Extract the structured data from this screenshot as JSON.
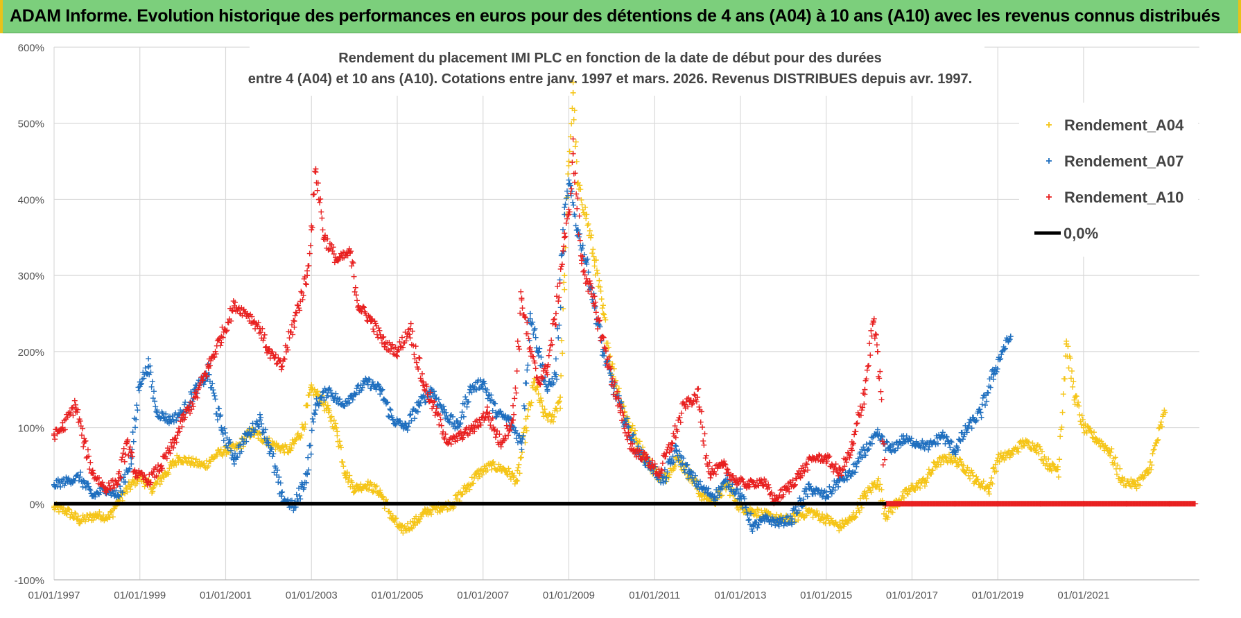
{
  "header": {
    "title": "ADAM Informe. Evolution historique des performances en euros pour des détentions de 4 ans (A04) à 10 ans (A10) avec les revenus connus distribués"
  },
  "chart_data": {
    "type": "scatter",
    "title_line1": "Rendement du placement IMI PLC en fonction de la date de début pour des durées",
    "title_line2": "entre 4 (A04) et 10 ans (A10). Cotations entre janv. 1997 et mars. 2026. Revenus DISTRIBUES depuis avr. 1997.",
    "xlabel": "",
    "ylabel": "",
    "x_range": [
      1997.0,
      2023.7
    ],
    "ylim": [
      -100,
      600
    ],
    "y_ticks": [
      "-100%",
      "0%",
      "100%",
      "200%",
      "300%",
      "400%",
      "500%",
      "600%"
    ],
    "y_tick_values": [
      -100,
      0,
      100,
      200,
      300,
      400,
      500,
      600
    ],
    "x_ticks": [
      "01/01/1997",
      "01/01/1999",
      "01/01/2001",
      "01/01/2003",
      "01/01/2005",
      "01/01/2007",
      "01/01/2009",
      "01/01/2011",
      "01/01/2013",
      "01/01/2015",
      "01/01/2017",
      "01/01/2019",
      "01/01/2021"
    ],
    "x_tick_values": [
      1997,
      1999,
      2001,
      2003,
      2005,
      2007,
      2009,
      2011,
      2013,
      2015,
      2017,
      2019,
      2021
    ],
    "grid": true,
    "legend_position": "top-right",
    "series": [
      {
        "name": "Rendement_A04",
        "color": "#f5c518",
        "points": [
          [
            1997.0,
            -5
          ],
          [
            1997.3,
            -10
          ],
          [
            1997.6,
            -22
          ],
          [
            1998.0,
            -15
          ],
          [
            1998.3,
            -18
          ],
          [
            1998.5,
            5
          ],
          [
            1998.8,
            25
          ],
          [
            1999.0,
            35
          ],
          [
            1999.3,
            20
          ],
          [
            1999.6,
            40
          ],
          [
            1999.9,
            60
          ],
          [
            2000.2,
            55
          ],
          [
            2000.5,
            50
          ],
          [
            2000.8,
            65
          ],
          [
            2001.0,
            70
          ],
          [
            2001.3,
            75
          ],
          [
            2001.6,
            95
          ],
          [
            2001.9,
            85
          ],
          [
            2002.2,
            75
          ],
          [
            2002.5,
            70
          ],
          [
            2002.8,
            100
          ],
          [
            2003.0,
            150
          ],
          [
            2003.2,
            140
          ],
          [
            2003.4,
            120
          ],
          [
            2003.6,
            95
          ],
          [
            2003.8,
            40
          ],
          [
            2004.0,
            20
          ],
          [
            2004.3,
            25
          ],
          [
            2004.6,
            15
          ],
          [
            2004.9,
            -20
          ],
          [
            2005.1,
            -35
          ],
          [
            2005.4,
            -25
          ],
          [
            2005.7,
            -10
          ],
          [
            2006.0,
            -5
          ],
          [
            2006.3,
            0
          ],
          [
            2006.6,
            20
          ],
          [
            2006.9,
            40
          ],
          [
            2007.2,
            50
          ],
          [
            2007.5,
            45
          ],
          [
            2007.8,
            30
          ],
          [
            2008.0,
            100
          ],
          [
            2008.2,
            160
          ],
          [
            2008.4,
            120
          ],
          [
            2008.6,
            110
          ],
          [
            2008.8,
            140
          ],
          [
            2008.9,
            300
          ],
          [
            2009.0,
            450
          ],
          [
            2009.1,
            540
          ],
          [
            2009.2,
            420
          ],
          [
            2009.4,
            380
          ],
          [
            2009.6,
            320
          ],
          [
            2009.8,
            250
          ],
          [
            2010.0,
            180
          ],
          [
            2010.3,
            120
          ],
          [
            2010.6,
            80
          ],
          [
            2010.9,
            50
          ],
          [
            2011.2,
            30
          ],
          [
            2011.5,
            60
          ],
          [
            2011.8,
            40
          ],
          [
            2012.1,
            10
          ],
          [
            2012.4,
            5
          ],
          [
            2012.7,
            25
          ],
          [
            2013.0,
            -5
          ],
          [
            2013.3,
            -10
          ],
          [
            2013.6,
            -15
          ],
          [
            2013.9,
            -20
          ],
          [
            2014.2,
            -20
          ],
          [
            2014.6,
            -10
          ],
          [
            2015.0,
            -20
          ],
          [
            2015.3,
            -30
          ],
          [
            2015.6,
            -20
          ],
          [
            2015.9,
            10
          ],
          [
            2016.2,
            30
          ],
          [
            2016.4,
            -15
          ],
          [
            2016.7,
            5
          ],
          [
            2017.0,
            20
          ],
          [
            2017.3,
            30
          ],
          [
            2017.6,
            55
          ],
          [
            2017.9,
            60
          ],
          [
            2018.2,
            50
          ],
          [
            2018.5,
            30
          ],
          [
            2018.8,
            20
          ],
          [
            2019.0,
            60
          ],
          [
            2019.3,
            65
          ],
          [
            2019.6,
            80
          ],
          [
            2019.9,
            75
          ],
          [
            2020.2,
            50
          ],
          [
            2020.4,
            45
          ],
          [
            2020.6,
            210
          ],
          [
            2020.8,
            140
          ],
          [
            2021.0,
            100
          ],
          [
            2021.3,
            85
          ],
          [
            2021.6,
            70
          ],
          [
            2021.9,
            30
          ],
          [
            2022.2,
            25
          ],
          [
            2022.5,
            40
          ],
          [
            2022.7,
            80
          ],
          [
            2022.9,
            120
          ]
        ]
      },
      {
        "name": "Rendement_A07",
        "color": "#1f6fbf",
        "points": [
          [
            1997.0,
            25
          ],
          [
            1997.3,
            30
          ],
          [
            1997.6,
            35
          ],
          [
            1997.9,
            10
          ],
          [
            1998.2,
            20
          ],
          [
            1998.5,
            10
          ],
          [
            1998.8,
            60
          ],
          [
            1999.0,
            160
          ],
          [
            1999.2,
            180
          ],
          [
            1999.4,
            120
          ],
          [
            1999.7,
            110
          ],
          [
            2000.0,
            120
          ],
          [
            2000.3,
            150
          ],
          [
            2000.6,
            170
          ],
          [
            2000.9,
            100
          ],
          [
            2001.2,
            60
          ],
          [
            2001.5,
            90
          ],
          [
            2001.8,
            110
          ],
          [
            2002.0,
            80
          ],
          [
            2002.3,
            10
          ],
          [
            2002.6,
            -5
          ],
          [
            2002.9,
            40
          ],
          [
            2003.1,
            130
          ],
          [
            2003.4,
            150
          ],
          [
            2003.7,
            130
          ],
          [
            2004.0,
            145
          ],
          [
            2004.3,
            160
          ],
          [
            2004.6,
            150
          ],
          [
            2004.9,
            110
          ],
          [
            2005.2,
            100
          ],
          [
            2005.5,
            130
          ],
          [
            2005.8,
            150
          ],
          [
            2006.1,
            120
          ],
          [
            2006.4,
            100
          ],
          [
            2006.7,
            150
          ],
          [
            2007.0,
            160
          ],
          [
            2007.3,
            120
          ],
          [
            2007.6,
            110
          ],
          [
            2007.9,
            80
          ],
          [
            2008.1,
            250
          ],
          [
            2008.3,
            200
          ],
          [
            2008.5,
            150
          ],
          [
            2008.7,
            170
          ],
          [
            2008.9,
            380
          ],
          [
            2009.0,
            420
          ],
          [
            2009.2,
            360
          ],
          [
            2009.4,
            320
          ],
          [
            2009.6,
            260
          ],
          [
            2009.8,
            200
          ],
          [
            2010.0,
            160
          ],
          [
            2010.3,
            110
          ],
          [
            2010.6,
            70
          ],
          [
            2010.9,
            50
          ],
          [
            2011.2,
            30
          ],
          [
            2011.5,
            70
          ],
          [
            2011.8,
            40
          ],
          [
            2012.1,
            20
          ],
          [
            2012.4,
            10
          ],
          [
            2012.7,
            30
          ],
          [
            2013.0,
            10
          ],
          [
            2013.3,
            -30
          ],
          [
            2013.6,
            -20
          ],
          [
            2013.9,
            -25
          ],
          [
            2014.2,
            -20
          ],
          [
            2014.6,
            20
          ],
          [
            2015.0,
            10
          ],
          [
            2015.3,
            30
          ],
          [
            2015.6,
            40
          ],
          [
            2015.9,
            70
          ],
          [
            2016.2,
            90
          ],
          [
            2016.5,
            70
          ],
          [
            2016.8,
            85
          ],
          [
            2017.1,
            80
          ],
          [
            2017.4,
            75
          ],
          [
            2017.7,
            90
          ],
          [
            2018.0,
            70
          ],
          [
            2018.3,
            100
          ],
          [
            2018.6,
            120
          ],
          [
            2018.9,
            170
          ],
          [
            2019.1,
            200
          ],
          [
            2019.3,
            220
          ]
        ]
      },
      {
        "name": "Rendement_A10",
        "color": "#e82020",
        "points": [
          [
            1997.0,
            90
          ],
          [
            1997.2,
            100
          ],
          [
            1997.5,
            130
          ],
          [
            1997.7,
            80
          ],
          [
            1997.9,
            40
          ],
          [
            1998.2,
            20
          ],
          [
            1998.5,
            30
          ],
          [
            1998.7,
            80
          ],
          [
            1998.9,
            40
          ],
          [
            1999.2,
            30
          ],
          [
            1999.5,
            50
          ],
          [
            1999.8,
            80
          ],
          [
            2000.0,
            110
          ],
          [
            2000.3,
            140
          ],
          [
            2000.6,
            180
          ],
          [
            2000.9,
            220
          ],
          [
            2001.2,
            260
          ],
          [
            2001.5,
            250
          ],
          [
            2001.8,
            230
          ],
          [
            2002.0,
            200
          ],
          [
            2002.3,
            180
          ],
          [
            2002.6,
            240
          ],
          [
            2002.9,
            300
          ],
          [
            2003.0,
            360
          ],
          [
            2003.1,
            440
          ],
          [
            2003.3,
            350
          ],
          [
            2003.6,
            320
          ],
          [
            2003.9,
            330
          ],
          [
            2004.1,
            260
          ],
          [
            2004.4,
            240
          ],
          [
            2004.7,
            210
          ],
          [
            2005.0,
            200
          ],
          [
            2005.3,
            230
          ],
          [
            2005.6,
            160
          ],
          [
            2005.9,
            120
          ],
          [
            2006.2,
            80
          ],
          [
            2006.5,
            90
          ],
          [
            2006.8,
            100
          ],
          [
            2007.1,
            120
          ],
          [
            2007.4,
            80
          ],
          [
            2007.7,
            110
          ],
          [
            2007.9,
            270
          ],
          [
            2008.1,
            200
          ],
          [
            2008.3,
            160
          ],
          [
            2008.5,
            180
          ],
          [
            2008.7,
            250
          ],
          [
            2008.9,
            350
          ],
          [
            2009.0,
            380
          ],
          [
            2009.1,
            460
          ],
          [
            2009.3,
            320
          ],
          [
            2009.6,
            260
          ],
          [
            2009.9,
            190
          ],
          [
            2010.2,
            120
          ],
          [
            2010.5,
            70
          ],
          [
            2010.8,
            60
          ],
          [
            2011.1,
            40
          ],
          [
            2011.4,
            80
          ],
          [
            2011.7,
            130
          ],
          [
            2012.0,
            140
          ],
          [
            2012.3,
            40
          ],
          [
            2012.6,
            50
          ],
          [
            2012.9,
            30
          ],
          [
            2013.2,
            25
          ],
          [
            2013.5,
            30
          ],
          [
            2013.8,
            5
          ],
          [
            2014.1,
            20
          ],
          [
            2014.4,
            40
          ],
          [
            2014.7,
            60
          ],
          [
            2015.0,
            60
          ],
          [
            2015.3,
            40
          ],
          [
            2015.6,
            70
          ],
          [
            2015.9,
            150
          ],
          [
            2016.1,
            240
          ],
          [
            2016.2,
            200
          ],
          [
            2016.4,
            0
          ],
          [
            2017.0,
            0
          ],
          [
            2018.0,
            0
          ],
          [
            2019.0,
            0
          ],
          [
            2020.0,
            0
          ],
          [
            2021.0,
            0
          ],
          [
            2022.0,
            0
          ],
          [
            2023.0,
            0
          ],
          [
            2023.6,
            0
          ]
        ]
      }
    ],
    "legend": [
      {
        "label": "Rendement_A04",
        "color": "#f5c518",
        "marker": "+"
      },
      {
        "label": "Rendement_A07",
        "color": "#1f6fbf",
        "marker": "+"
      },
      {
        "label": "Rendement_A10",
        "color": "#e82020",
        "marker": "+"
      },
      {
        "label": "0,0%",
        "color": "#000000",
        "marker": "line"
      }
    ],
    "reference_line": {
      "label": "0,0%",
      "y": 0,
      "color": "#000000"
    }
  }
}
